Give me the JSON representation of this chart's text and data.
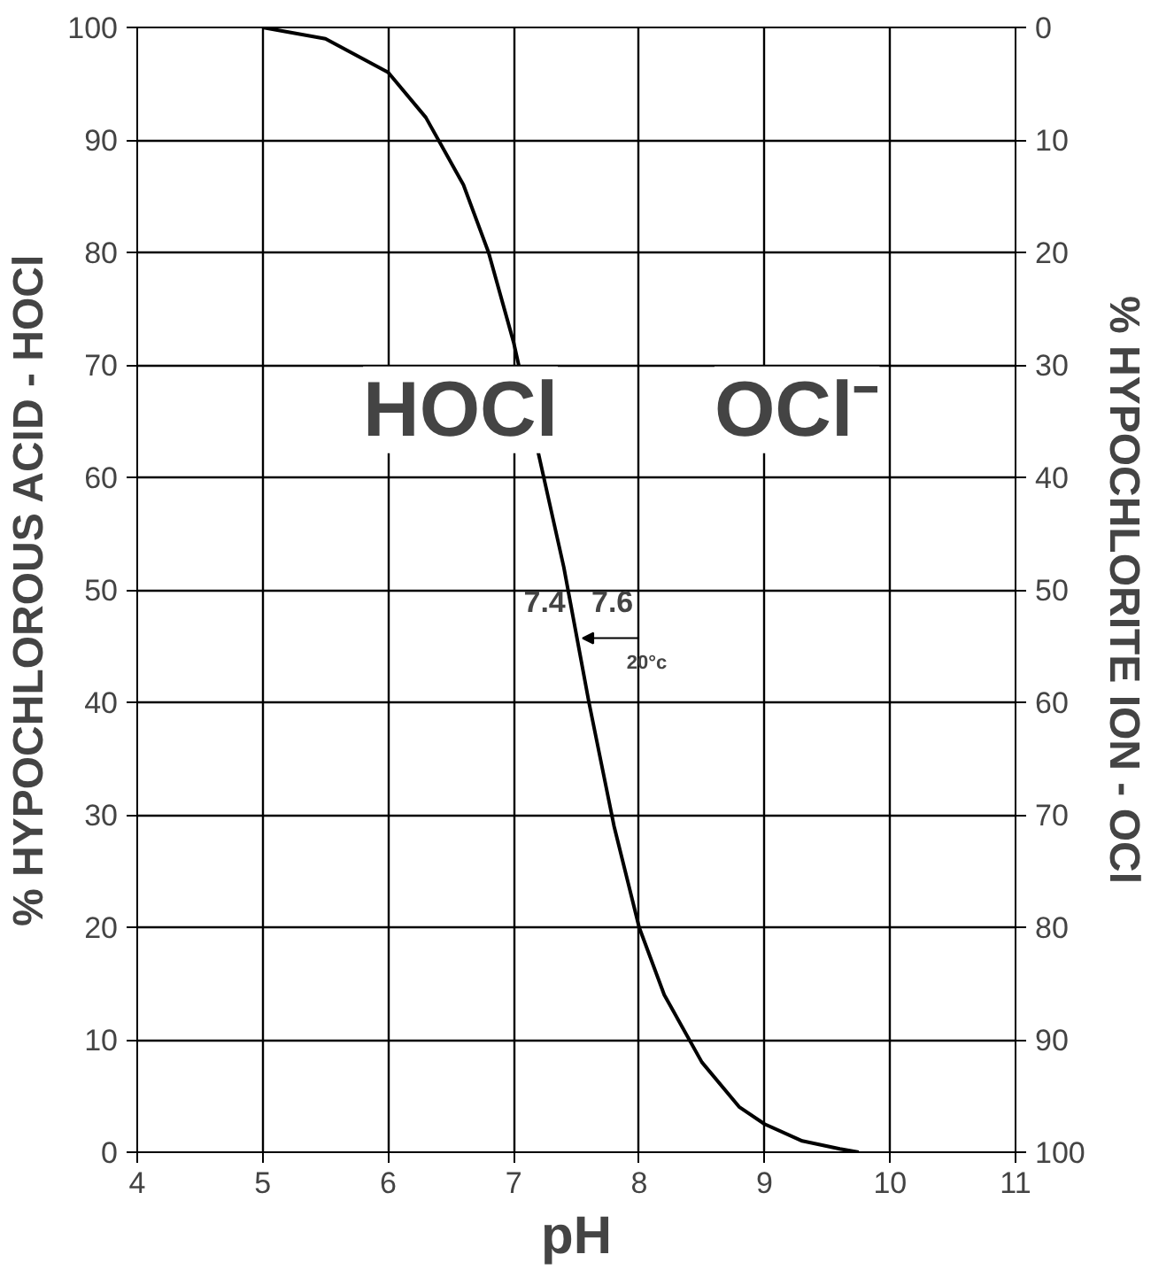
{
  "chart_data": {
    "type": "line",
    "xlabel": "pH",
    "ylabel": "% HYPOCHLOROUS ACID - HOCl",
    "y2label": "% HYPOCHLORITE ION - OCl",
    "x": [
      5,
      5.5,
      6,
      6.3,
      6.6,
      6.8,
      7,
      7.2,
      7.4,
      7.6,
      7.8,
      8,
      8.2,
      8.5,
      8.8,
      9,
      9.3,
      9.6,
      9.75
    ],
    "series": [
      {
        "color": "#000000",
        "values": [
          100,
          99,
          96,
          92,
          86,
          80,
          72,
          62,
          52,
          40,
          29,
          20,
          14,
          8,
          4,
          2.5,
          1,
          0.3,
          0
        ]
      }
    ],
    "xlim": [
      4,
      11
    ],
    "xticks": [
      4,
      5,
      6,
      7,
      8,
      9,
      10,
      11
    ],
    "ylim": [
      0,
      100
    ],
    "yticks": [
      0,
      10,
      20,
      30,
      40,
      50,
      60,
      70,
      80,
      90,
      100
    ],
    "y2lim": [
      100,
      0
    ],
    "y2ticks": [
      0,
      10,
      20,
      30,
      40,
      50,
      60,
      70,
      80,
      90,
      100
    ],
    "grid": true,
    "annotations": [
      "HOCl",
      "OCl⁻",
      "7.4",
      "7.6",
      "20°c"
    ]
  }
}
